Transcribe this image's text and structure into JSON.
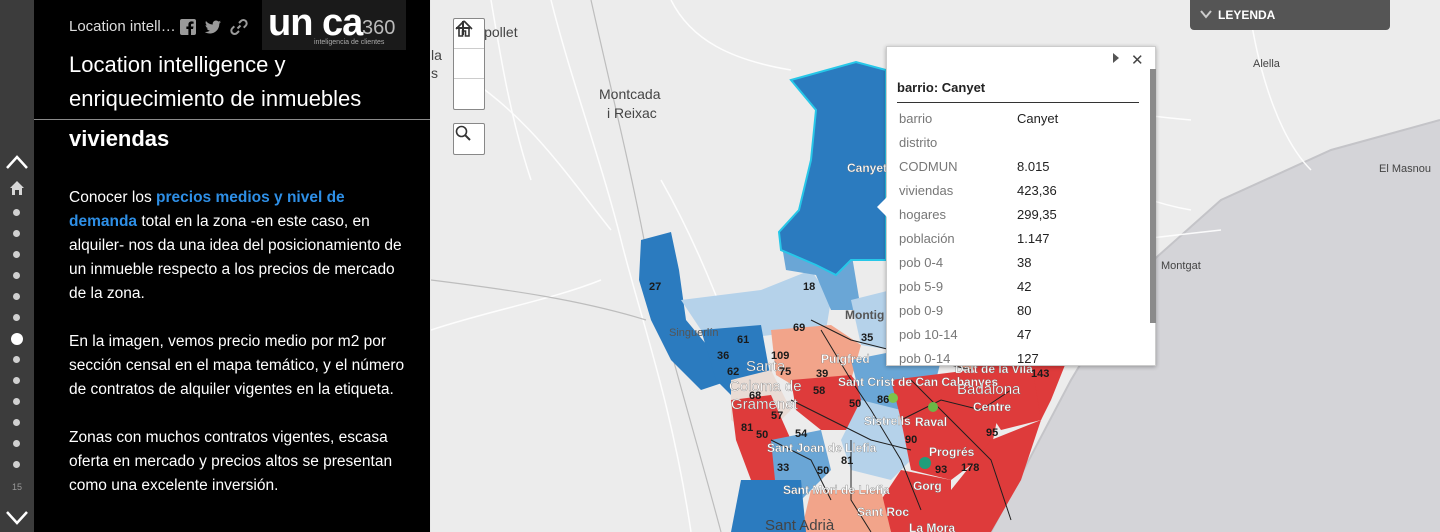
{
  "nav": {
    "page_number": "15"
  },
  "panel": {
    "app_title": "Location intell…",
    "headline": "Location intelligence y enriquecimiento de inmuebles",
    "section_title": "viviendas",
    "p1_pre": "Conocer los ",
    "p1_link": "precios medios y nivel de demanda",
    "p1_post": " total en la zona -en este caso, en alquiler- nos da una idea del posicionamiento de un inmueble respecto a los precios de mercado de la zona.",
    "p2": "En la imagen, vemos precio medio por m2 por sección censal en el mapa temático, y el número de contratos de alquiler vigentes en la etiqueta.",
    "p3": "Zonas con muchos contratos vigentes, escasa oferta en mercado y precios altos se presentan como una excelente inversión."
  },
  "logo": {
    "main": "un ca",
    "num": "360",
    "sub": "inteligencia de clientes"
  },
  "map": {
    "places": {
      "ripollet": "ipollet",
      "montcada": "Montcada",
      "reixac": "i Reixac",
      "canyet": "Canyet",
      "montgat": "Montgat",
      "alella": "Alella",
      "masnou": "El Masnou",
      "singuerlin": "Singuerlín",
      "montigala": "Montig",
      "puigfred": "Puigfred",
      "santa_coloma_1": "Santa",
      "santa_coloma_2": "Coloma de",
      "santa_coloma_3": "Gramenet",
      "sant_crist": "Sant Crist de Can Cabanyes",
      "dalt_vila": "Dalt de la Vila",
      "badalona": "Badalona",
      "centre": "Centre",
      "sistrells": "Sistrells",
      "raval": "Raval",
      "sant_joan": "Sant Joan de Llefia",
      "progres": "Progrés",
      "gorg": "Gorg",
      "sant_mori": "Sant Mori de Llefia",
      "sant_roc": "Sant Roc",
      "la_mora": "La Mora",
      "sant_adria": "Sant Adrià",
      "pla": "la",
      "pla2": "s"
    },
    "counts": [
      "27",
      "18",
      "69",
      "35",
      "61",
      "36",
      "109",
      "62",
      "75",
      "39",
      "58",
      "68",
      "57",
      "81",
      "50",
      "54",
      "50",
      "33",
      "50",
      "90",
      "93",
      "178",
      "95",
      "143",
      "81",
      "86"
    ],
    "colors": {
      "dark_blue": "#2b7bbf",
      "mid_blue": "#6aa6d6",
      "light_blue": "#b5d2ea",
      "pale": "#e9dcd5",
      "light_red": "#f2a48a",
      "red": "#de3b3b",
      "selection": "#27c7e8"
    }
  },
  "popup": {
    "title": "barrio: Canyet",
    "rows": [
      {
        "key": "barrio",
        "value": "Canyet"
      },
      {
        "key": "distrito",
        "value": ""
      },
      {
        "key": "CODMUN",
        "value": "8.015"
      },
      {
        "key": "viviendas",
        "value": "423,36"
      },
      {
        "key": "hogares",
        "value": "299,35"
      },
      {
        "key": "población",
        "value": "1.147"
      },
      {
        "key": "pob 0-4",
        "value": "38"
      },
      {
        "key": "pob 5-9",
        "value": "42"
      },
      {
        "key": "pob 0-9",
        "value": "80"
      },
      {
        "key": "pob 10-14",
        "value": "47"
      },
      {
        "key": "pob 0-14",
        "value": "127"
      }
    ]
  },
  "legend": {
    "label": "LEYENDA"
  },
  "icons": [
    "home-icon",
    "search-icon",
    "facebook-icon",
    "twitter-icon",
    "link-icon",
    "close-icon",
    "next-icon",
    "chevron-down-icon",
    "chevron-up-icon"
  ]
}
